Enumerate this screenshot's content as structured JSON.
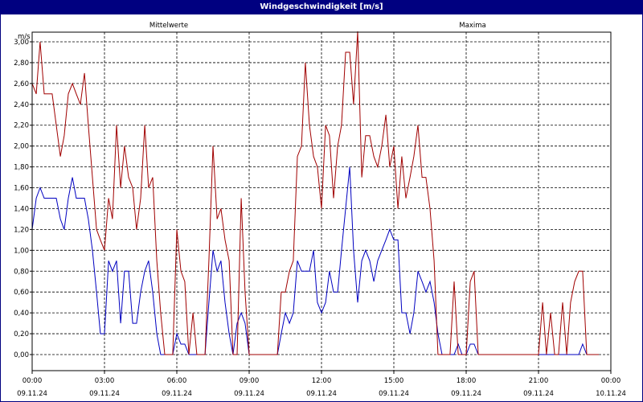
{
  "window": {
    "title": "Windgeschwindigkeit [m/s]"
  },
  "chart_data": {
    "type": "line",
    "ylabel": "m/s",
    "ylim": [
      0,
      3.2
    ],
    "xlim_hours": [
      0,
      24
    ],
    "grid": true,
    "legend_placement": "top",
    "y_ticks": [
      "0,00",
      "0,20",
      "0,40",
      "0,60",
      "0,80",
      "1,00",
      "1,20",
      "1,40",
      "1,60",
      "1,80",
      "2,00",
      "2,20",
      "2,40",
      "2,60",
      "2,80",
      "3,00"
    ],
    "x_ticks": [
      {
        "time": "00:00",
        "date": "09.11.24"
      },
      {
        "time": "03:00",
        "date": "09.11.24"
      },
      {
        "time": "06:00",
        "date": "09.11.24"
      },
      {
        "time": "09:00",
        "date": "09.11.24"
      },
      {
        "time": "12:00",
        "date": "09.11.24"
      },
      {
        "time": "15:00",
        "date": "09.11.24"
      },
      {
        "time": "18:00",
        "date": "09.11.24"
      },
      {
        "time": "21:00",
        "date": "09.11.24"
      },
      {
        "time": "00:00",
        "date": "10.11.24"
      }
    ],
    "series": [
      {
        "name": "Mittelwerte",
        "color": "#0000c0",
        "points": [
          [
            0.0,
            1.2
          ],
          [
            0.17,
            1.5
          ],
          [
            0.33,
            1.6
          ],
          [
            0.5,
            1.5
          ],
          [
            0.67,
            1.5
          ],
          [
            0.83,
            1.5
          ],
          [
            1.0,
            1.5
          ],
          [
            1.17,
            1.3
          ],
          [
            1.33,
            1.2
          ],
          [
            1.5,
            1.5
          ],
          [
            1.67,
            1.7
          ],
          [
            1.83,
            1.5
          ],
          [
            2.0,
            1.5
          ],
          [
            2.17,
            1.5
          ],
          [
            2.33,
            1.3
          ],
          [
            2.5,
            1.0
          ],
          [
            2.67,
            0.6
          ],
          [
            2.83,
            0.2
          ],
          [
            3.0,
            0.2
          ],
          [
            3.17,
            0.9
          ],
          [
            3.33,
            0.8
          ],
          [
            3.5,
            0.9
          ],
          [
            3.67,
            0.3
          ],
          [
            3.83,
            0.8
          ],
          [
            4.0,
            0.8
          ],
          [
            4.17,
            0.3
          ],
          [
            4.33,
            0.3
          ],
          [
            4.5,
            0.6
          ],
          [
            4.67,
            0.8
          ],
          [
            4.83,
            0.9
          ],
          [
            5.0,
            0.6
          ],
          [
            5.17,
            0.2
          ],
          [
            5.33,
            0.0
          ],
          [
            5.5,
            0.0
          ],
          [
            5.67,
            0.0
          ],
          [
            5.83,
            0.0
          ],
          [
            6.0,
            0.2
          ],
          [
            6.17,
            0.1
          ],
          [
            6.33,
            0.1
          ],
          [
            6.5,
            0.0
          ],
          [
            6.67,
            0.0
          ],
          [
            6.83,
            0.0
          ],
          [
            7.0,
            0.0
          ],
          [
            7.17,
            0.0
          ],
          [
            7.33,
            0.5
          ],
          [
            7.5,
            1.0
          ],
          [
            7.67,
            0.8
          ],
          [
            7.83,
            0.9
          ],
          [
            8.0,
            0.5
          ],
          [
            8.17,
            0.2
          ],
          [
            8.33,
            0.0
          ],
          [
            8.5,
            0.3
          ],
          [
            8.67,
            0.4
          ],
          [
            8.83,
            0.3
          ],
          [
            9.0,
            0.0
          ],
          [
            9.17,
            0.0
          ],
          [
            9.33,
            0.0
          ],
          [
            9.5,
            0.0
          ],
          [
            9.67,
            0.0
          ],
          [
            9.83,
            0.0
          ],
          [
            10.0,
            0.0
          ],
          [
            10.17,
            0.0
          ],
          [
            10.33,
            0.2
          ],
          [
            10.5,
            0.4
          ],
          [
            10.67,
            0.3
          ],
          [
            10.83,
            0.4
          ],
          [
            11.0,
            0.9
          ],
          [
            11.17,
            0.8
          ],
          [
            11.33,
            0.8
          ],
          [
            11.5,
            0.8
          ],
          [
            11.67,
            1.0
          ],
          [
            11.83,
            0.5
          ],
          [
            12.0,
            0.4
          ],
          [
            12.17,
            0.5
          ],
          [
            12.33,
            0.8
          ],
          [
            12.5,
            0.6
          ],
          [
            12.67,
            0.6
          ],
          [
            12.83,
            1.0
          ],
          [
            13.0,
            1.4
          ],
          [
            13.17,
            1.8
          ],
          [
            13.33,
            1.0
          ],
          [
            13.5,
            0.5
          ],
          [
            13.67,
            0.9
          ],
          [
            13.83,
            1.0
          ],
          [
            14.0,
            0.9
          ],
          [
            14.17,
            0.7
          ],
          [
            14.33,
            0.9
          ],
          [
            14.5,
            1.0
          ],
          [
            14.67,
            1.1
          ],
          [
            14.83,
            1.2
          ],
          [
            15.0,
            1.1
          ],
          [
            15.17,
            1.1
          ],
          [
            15.33,
            0.4
          ],
          [
            15.5,
            0.4
          ],
          [
            15.67,
            0.2
          ],
          [
            15.83,
            0.4
          ],
          [
            16.0,
            0.8
          ],
          [
            16.17,
            0.7
          ],
          [
            16.33,
            0.6
          ],
          [
            16.5,
            0.7
          ],
          [
            16.67,
            0.5
          ],
          [
            16.83,
            0.2
          ],
          [
            17.0,
            0.0
          ],
          [
            17.17,
            0.0
          ],
          [
            17.33,
            0.0
          ],
          [
            17.5,
            0.0
          ],
          [
            17.67,
            0.1
          ],
          [
            17.83,
            0.0
          ],
          [
            18.0,
            0.0
          ],
          [
            18.17,
            0.1
          ],
          [
            18.33,
            0.1
          ],
          [
            18.5,
            0.0
          ],
          [
            19.0,
            0.0
          ],
          [
            20.0,
            0.0
          ],
          [
            21.0,
            0.0
          ],
          [
            22.0,
            0.0
          ],
          [
            22.67,
            0.0
          ],
          [
            22.83,
            0.1
          ],
          [
            23.0,
            0.0
          ],
          [
            23.5,
            0.0
          ]
        ]
      },
      {
        "name": "Maxima",
        "color": "#a00000",
        "points": [
          [
            0.0,
            2.6
          ],
          [
            0.17,
            2.5
          ],
          [
            0.33,
            3.0
          ],
          [
            0.5,
            2.5
          ],
          [
            0.67,
            2.5
          ],
          [
            0.83,
            2.5
          ],
          [
            1.0,
            2.2
          ],
          [
            1.17,
            1.9
          ],
          [
            1.33,
            2.1
          ],
          [
            1.5,
            2.5
          ],
          [
            1.67,
            2.6
          ],
          [
            1.83,
            2.5
          ],
          [
            2.0,
            2.4
          ],
          [
            2.17,
            2.7
          ],
          [
            2.33,
            2.2
          ],
          [
            2.5,
            1.7
          ],
          [
            2.67,
            1.2
          ],
          [
            2.83,
            1.1
          ],
          [
            3.0,
            1.0
          ],
          [
            3.17,
            1.5
          ],
          [
            3.33,
            1.3
          ],
          [
            3.5,
            2.2
          ],
          [
            3.67,
            1.6
          ],
          [
            3.83,
            2.0
          ],
          [
            4.0,
            1.7
          ],
          [
            4.17,
            1.6
          ],
          [
            4.33,
            1.2
          ],
          [
            4.5,
            1.5
          ],
          [
            4.67,
            2.2
          ],
          [
            4.83,
            1.6
          ],
          [
            5.0,
            1.7
          ],
          [
            5.17,
            0.9
          ],
          [
            5.33,
            0.4
          ],
          [
            5.5,
            0.0
          ],
          [
            5.67,
            0.0
          ],
          [
            5.83,
            0.0
          ],
          [
            6.0,
            1.2
          ],
          [
            6.17,
            0.8
          ],
          [
            6.33,
            0.7
          ],
          [
            6.5,
            0.0
          ],
          [
            6.67,
            0.4
          ],
          [
            6.83,
            0.0
          ],
          [
            7.0,
            0.0
          ],
          [
            7.17,
            0.0
          ],
          [
            7.33,
            0.9
          ],
          [
            7.5,
            2.0
          ],
          [
            7.67,
            1.3
          ],
          [
            7.83,
            1.4
          ],
          [
            8.0,
            1.1
          ],
          [
            8.17,
            0.9
          ],
          [
            8.33,
            0.0
          ],
          [
            8.5,
            0.0
          ],
          [
            8.67,
            1.5
          ],
          [
            8.83,
            0.6
          ],
          [
            9.0,
            0.0
          ],
          [
            9.17,
            0.0
          ],
          [
            9.33,
            0.0
          ],
          [
            9.5,
            0.0
          ],
          [
            9.67,
            0.0
          ],
          [
            9.83,
            0.0
          ],
          [
            10.0,
            0.0
          ],
          [
            10.17,
            0.0
          ],
          [
            10.33,
            0.6
          ],
          [
            10.5,
            0.6
          ],
          [
            10.67,
            0.8
          ],
          [
            10.83,
            0.9
          ],
          [
            11.0,
            1.9
          ],
          [
            11.17,
            2.0
          ],
          [
            11.33,
            2.8
          ],
          [
            11.5,
            2.2
          ],
          [
            11.67,
            1.9
          ],
          [
            11.83,
            1.8
          ],
          [
            12.0,
            1.4
          ],
          [
            12.17,
            2.2
          ],
          [
            12.33,
            2.1
          ],
          [
            12.5,
            1.5
          ],
          [
            12.67,
            2.0
          ],
          [
            12.83,
            2.2
          ],
          [
            13.0,
            2.9
          ],
          [
            13.17,
            2.9
          ],
          [
            13.33,
            2.4
          ],
          [
            13.5,
            3.1
          ],
          [
            13.67,
            1.7
          ],
          [
            13.83,
            2.1
          ],
          [
            14.0,
            2.1
          ],
          [
            14.17,
            1.9
          ],
          [
            14.33,
            1.8
          ],
          [
            14.5,
            2.0
          ],
          [
            14.67,
            2.3
          ],
          [
            14.83,
            1.8
          ],
          [
            15.0,
            2.0
          ],
          [
            15.17,
            1.4
          ],
          [
            15.33,
            1.9
          ],
          [
            15.5,
            1.5
          ],
          [
            15.67,
            1.7
          ],
          [
            15.83,
            1.9
          ],
          [
            16.0,
            2.2
          ],
          [
            16.17,
            1.7
          ],
          [
            16.33,
            1.7
          ],
          [
            16.5,
            1.4
          ],
          [
            16.67,
            0.9
          ],
          [
            16.83,
            0.0
          ],
          [
            17.0,
            0.0
          ],
          [
            17.17,
            0.0
          ],
          [
            17.33,
            0.0
          ],
          [
            17.5,
            0.7
          ],
          [
            17.67,
            0.0
          ],
          [
            17.83,
            0.0
          ],
          [
            18.0,
            0.0
          ],
          [
            18.17,
            0.7
          ],
          [
            18.33,
            0.8
          ],
          [
            18.5,
            0.0
          ],
          [
            19.0,
            0.0
          ],
          [
            20.0,
            0.0
          ],
          [
            21.0,
            0.0
          ],
          [
            21.17,
            0.5
          ],
          [
            21.33,
            0.0
          ],
          [
            21.5,
            0.4
          ],
          [
            21.67,
            0.0
          ],
          [
            21.83,
            0.0
          ],
          [
            22.0,
            0.5
          ],
          [
            22.17,
            0.0
          ],
          [
            22.33,
            0.5
          ],
          [
            22.5,
            0.7
          ],
          [
            22.67,
            0.8
          ],
          [
            22.83,
            0.8
          ],
          [
            23.0,
            0.0
          ],
          [
            23.5,
            0.0
          ]
        ]
      }
    ]
  }
}
